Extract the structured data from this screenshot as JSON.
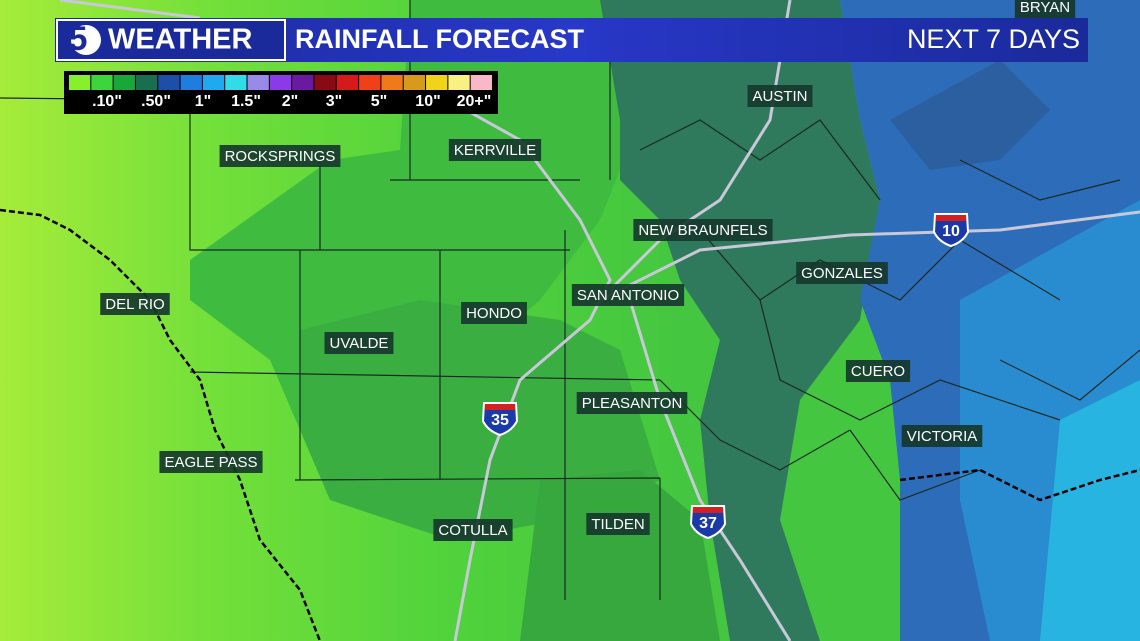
{
  "header": {
    "logo_number": "5",
    "brand": "WEATHER",
    "title": "RAINFALL FORECAST",
    "period": "NEXT 7 DAYS"
  },
  "legend": {
    "colors": [
      "#86f02a",
      "#3dd63a",
      "#18a83a",
      "#1a6e50",
      "#1e4fa8",
      "#1e7ee0",
      "#1eaaf0",
      "#30dce8",
      "#9a8ae8",
      "#8a3ae8",
      "#6a1aa0",
      "#8a0a14",
      "#d41a1a",
      "#f0401a",
      "#f07a1a",
      "#d89a1a",
      "#f0d41a",
      "#f8f080",
      "#f8b8c8"
    ],
    "labels": [
      ".10\"",
      ".50\"",
      "1\"",
      "1.5\"",
      "2\"",
      "3\"",
      "5\"",
      "10\"",
      "20+\""
    ]
  },
  "cities": [
    "BRYAN",
    "AUSTIN",
    "ROCKSPRINGS",
    "KERRVILLE",
    "NEW BRAUNFELS",
    "GONZALES",
    "DEL RIO",
    "SAN ANTONIO",
    "HONDO",
    "UVALDE",
    "CUERO",
    "PLEASANTON",
    "VICTORIA",
    "EAGLE PASS",
    "COTULLA",
    "TILDEN"
  ],
  "highways": [
    "35",
    "37",
    "10"
  ]
}
